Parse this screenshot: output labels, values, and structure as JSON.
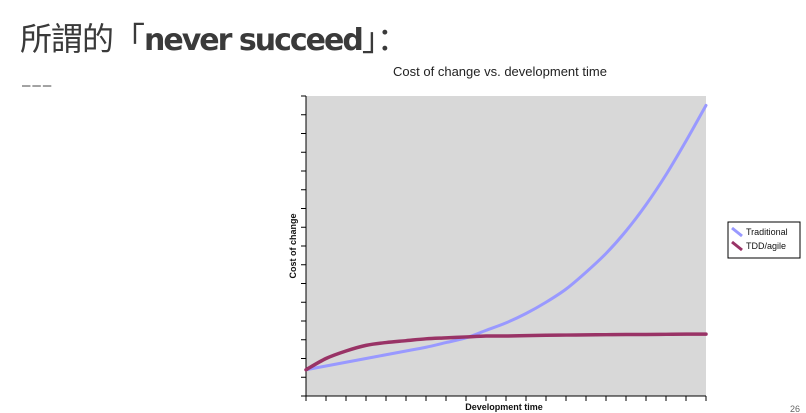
{
  "slide": {
    "title_prefix": "所謂的「",
    "title_en": "never succeed",
    "title_suffix": "」：",
    "divider": "———",
    "page_number": "26"
  },
  "colors": {
    "plot_background": "#d8d8d8",
    "traditional": "#9999ff",
    "tdd_agile": "#993366"
  },
  "chart_data": {
    "type": "line",
    "title": "Cost of change vs. development time",
    "xlabel": "Development time",
    "ylabel": "Cost of change",
    "xlim": [
      0,
      20
    ],
    "ylim": [
      0,
      16
    ],
    "grid": false,
    "legend_position": "right",
    "tick_labels_shown": false,
    "series": [
      {
        "name": "Traditional",
        "color": "#9999ff",
        "x": [
          0,
          1,
          2,
          3,
          4,
          5,
          6,
          7,
          8,
          9,
          10,
          11,
          12,
          13,
          14,
          15,
          16,
          17,
          18,
          19,
          20
        ],
        "y": [
          1.4,
          1.6,
          1.8,
          2.0,
          2.2,
          2.4,
          2.6,
          2.85,
          3.1,
          3.5,
          3.9,
          4.4,
          5.0,
          5.7,
          6.6,
          7.6,
          8.8,
          10.2,
          11.8,
          13.6,
          15.5
        ]
      },
      {
        "name": "TDD/agile",
        "color": "#993366",
        "x": [
          0,
          1,
          2,
          3,
          4,
          5,
          6,
          7,
          8,
          9,
          10,
          11,
          12,
          13,
          14,
          15,
          16,
          17,
          18,
          19,
          20
        ],
        "y": [
          1.4,
          2.0,
          2.4,
          2.7,
          2.85,
          2.95,
          3.05,
          3.1,
          3.15,
          3.2,
          3.2,
          3.22,
          3.24,
          3.25,
          3.26,
          3.27,
          3.28,
          3.28,
          3.29,
          3.3,
          3.3
        ]
      }
    ]
  }
}
